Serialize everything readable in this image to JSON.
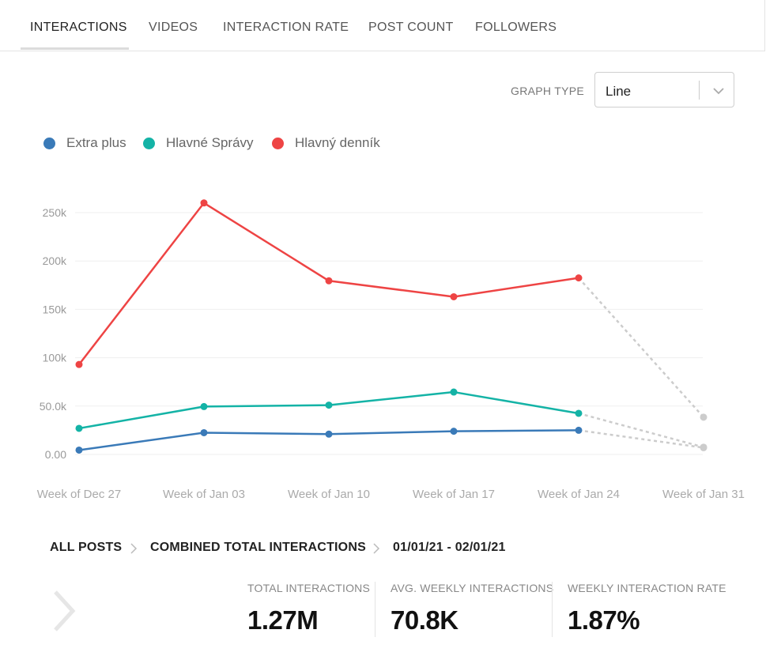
{
  "tabs": [
    {
      "label": "INTERACTIONS",
      "active": true
    },
    {
      "label": "VIDEOS",
      "active": false
    },
    {
      "label": "INTERACTION RATE",
      "active": false
    },
    {
      "label": "POST COUNT",
      "active": false
    },
    {
      "label": "FOLLOWERS",
      "active": false
    }
  ],
  "graph_type": {
    "label": "GRAPH TYPE",
    "value": "Line",
    "chevron_icon": "chevron-down-icon"
  },
  "chart_data": {
    "type": "line",
    "x": [
      "Week of Dec 27",
      "Week of Jan 03",
      "Week of Jan 10",
      "Week of Jan 17",
      "Week of Jan 24",
      "Week of Jan 31"
    ],
    "ylim": [
      0,
      250000
    ],
    "yticks": [
      0,
      50000,
      100000,
      150000,
      200000,
      250000
    ],
    "ytick_labels": [
      "0.00",
      "50.0k",
      "100k",
      "150k",
      "200k",
      "250k"
    ],
    "grid": true,
    "legend_position": "top-left",
    "series": [
      {
        "name": "Extra plus",
        "color": "#3a7ab8",
        "values": [
          4500,
          22500,
          21000,
          24000,
          25000,
          7000
        ],
        "partial_last": true
      },
      {
        "name": "Hlavné Správy",
        "color": "#14b3a6",
        "values": [
          27000,
          49500,
          51000,
          64500,
          42500,
          7500
        ],
        "partial_last": true
      },
      {
        "name": "Hlavný denník",
        "color": "#ee4444",
        "values": [
          93000,
          260000,
          179500,
          163000,
          182500,
          38500
        ],
        "partial_last": true
      }
    ],
    "partial_color": "#cccccc"
  },
  "breadcrumb": {
    "items": [
      "ALL POSTS",
      "COMBINED TOTAL INTERACTIONS",
      "01/01/21 - 02/01/21"
    ],
    "separator_icon": "chevron-right-icon"
  },
  "stats": [
    {
      "label": "TOTAL INTERACTIONS",
      "value": "1.27M"
    },
    {
      "label": "AVG. WEEKLY INTERACTIONS",
      "value": "70.8K"
    },
    {
      "label": "WEEKLY INTERACTION RATE",
      "value": "1.87%"
    }
  ]
}
